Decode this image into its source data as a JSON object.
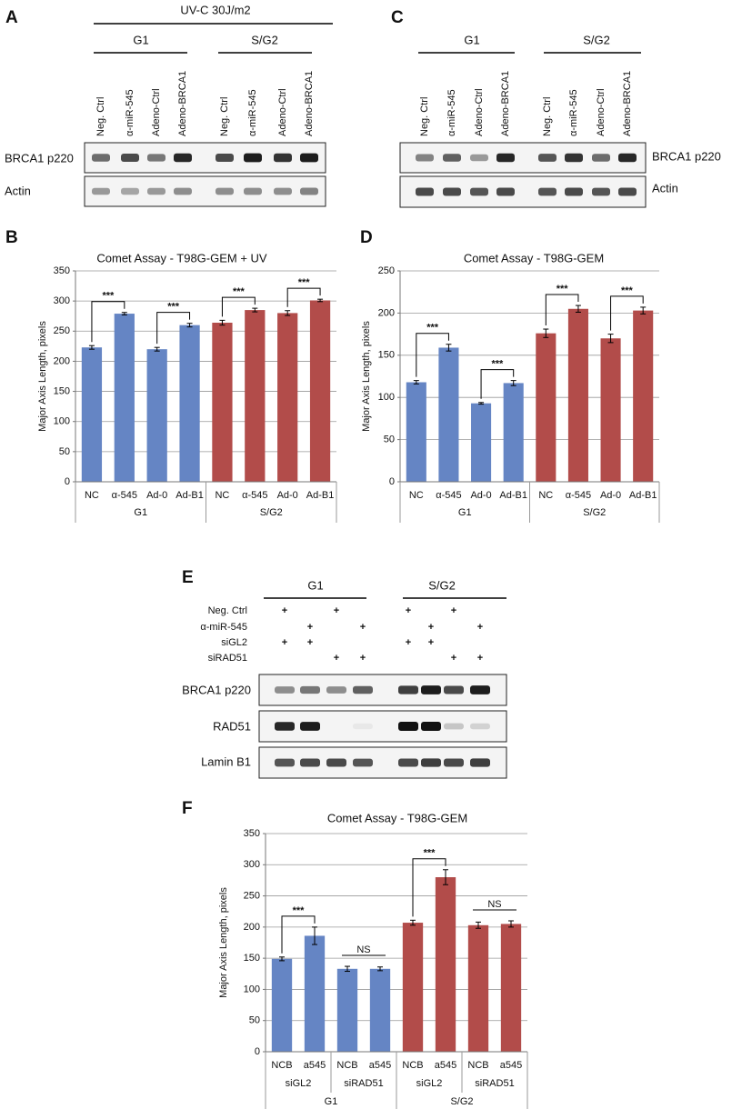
{
  "panel_labels": [
    "A",
    "B",
    "C",
    "D",
    "E",
    "F"
  ],
  "blot_a": {
    "treatment": "UV-C 30J/m2",
    "groups": [
      "G1",
      "S/G2"
    ],
    "lanes": [
      "Neg. Ctrl",
      "α-miR-545",
      "Adeno-Ctrl",
      "Adeno-BRCA1",
      "Neg. Ctrl",
      "α-miR-545",
      "Adeno-Ctrl",
      "Adeno-BRCA1"
    ],
    "rows": [
      "BRCA1 p220",
      "Actin"
    ]
  },
  "blot_c": {
    "groups": [
      "G1",
      "S/G2"
    ],
    "lanes": [
      "Neg. Ctrl",
      "α-miR-545",
      "Adeno-Ctrl",
      "Adeno-BRCA1",
      "Neg. Ctrl",
      "α-miR-545",
      "Adeno-Ctrl",
      "Adeno-BRCA1"
    ],
    "rows": [
      "BRCA1 p220",
      "Actin"
    ]
  },
  "blot_e": {
    "groups": [
      "G1",
      "S/G2"
    ],
    "conditions": [
      {
        "label": "Neg. Ctrl",
        "marks": [
          "+",
          null,
          "+",
          null,
          "+",
          null,
          "+",
          null
        ]
      },
      {
        "label": "α-miR-545",
        "marks": [
          null,
          "+",
          null,
          "+",
          null,
          "+",
          null,
          "+"
        ]
      },
      {
        "label": "siGL2",
        "marks": [
          "+",
          "+",
          null,
          null,
          "+",
          "+",
          null,
          null
        ]
      },
      {
        "label": "siRAD51",
        "marks": [
          null,
          null,
          "+",
          "+",
          null,
          null,
          "+",
          "+"
        ]
      }
    ],
    "rows": [
      "BRCA1 p220",
      "RAD51",
      "Lamin B1"
    ]
  },
  "chart_data": [
    {
      "type": "bar",
      "title": "Comet Assay - T98G-GEM + UV",
      "ylabel": "Major Axis Length, pixels",
      "categories": [
        "NC",
        "α-545",
        "Ad-0",
        "Ad-B1",
        "NC",
        "α-545",
        "Ad-0",
        "Ad-B1"
      ],
      "groups": [
        {
          "label": "G1",
          "color": "#6585c4"
        },
        {
          "label": "S/G2",
          "color": "#b24c4a"
        }
      ],
      "values": [
        223,
        279,
        220,
        260,
        264,
        285,
        280,
        301
      ],
      "errors": [
        3,
        2,
        3,
        3,
        4,
        3,
        4,
        2
      ],
      "annotations": [
        {
          "text": "***",
          "bars": [
            0,
            1
          ],
          "style": "bracket"
        },
        {
          "text": "***",
          "bars": [
            2,
            3
          ],
          "style": "bracket"
        },
        {
          "text": "***",
          "bars": [
            4,
            5
          ],
          "style": "bracket"
        },
        {
          "text": "***",
          "bars": [
            6,
            7
          ],
          "style": "bracket"
        }
      ],
      "ylim": [
        0,
        350
      ],
      "yticks": [
        0,
        50,
        100,
        150,
        200,
        250,
        300,
        350
      ],
      "grid": true
    },
    {
      "type": "bar",
      "title": "Comet Assay - T98G-GEM",
      "ylabel": "Major Axis Length, pixels",
      "categories": [
        "NC",
        "α-545",
        "Ad-0",
        "Ad-B1",
        "NC",
        "α-545",
        "Ad-0",
        "Ad-B1"
      ],
      "groups": [
        {
          "label": "G1",
          "color": "#6585c4"
        },
        {
          "label": "S/G2",
          "color": "#b24c4a"
        }
      ],
      "values": [
        118,
        159,
        93,
        117,
        176,
        205,
        170,
        203
      ],
      "errors": [
        2,
        4,
        1,
        3,
        5,
        4,
        5,
        4
      ],
      "annotations": [
        {
          "text": "***",
          "bars": [
            0,
            1
          ],
          "style": "bracket"
        },
        {
          "text": "***",
          "bars": [
            2,
            3
          ],
          "style": "bracket"
        },
        {
          "text": "***",
          "bars": [
            4,
            5
          ],
          "style": "bracket"
        },
        {
          "text": "***",
          "bars": [
            6,
            7
          ],
          "style": "bracket"
        }
      ],
      "ylim": [
        0,
        250
      ],
      "yticks": [
        0,
        50,
        100,
        150,
        200,
        250
      ],
      "grid": true
    },
    {
      "type": "bar",
      "title": "Comet Assay - T98G-GEM",
      "ylabel": "Major Axis Length, pixels",
      "categories": [
        "NCB",
        "a545",
        "NCB",
        "a545",
        "NCB",
        "a545",
        "NCB",
        "a545"
      ],
      "subgroups": [
        "siGL2",
        "siRAD51",
        "siGL2",
        "siRAD51"
      ],
      "groups": [
        {
          "label": "G1",
          "color": "#6585c4"
        },
        {
          "label": "S/G2",
          "color": "#b24c4a"
        }
      ],
      "values": [
        149,
        186,
        133,
        133,
        207,
        280,
        203,
        205
      ],
      "errors": [
        3,
        14,
        4,
        3,
        4,
        12,
        5,
        5
      ],
      "annotations": [
        {
          "text": "***",
          "bars": [
            0,
            1
          ],
          "style": "bracket"
        },
        {
          "text": "NS",
          "bars": [
            2,
            3
          ],
          "style": "line"
        },
        {
          "text": "***",
          "bars": [
            4,
            5
          ],
          "style": "bracket"
        },
        {
          "text": "NS",
          "bars": [
            6,
            7
          ],
          "style": "line"
        }
      ],
      "ylim": [
        0,
        350
      ],
      "yticks": [
        0,
        50,
        100,
        150,
        200,
        250,
        300,
        350
      ],
      "grid": true
    }
  ]
}
